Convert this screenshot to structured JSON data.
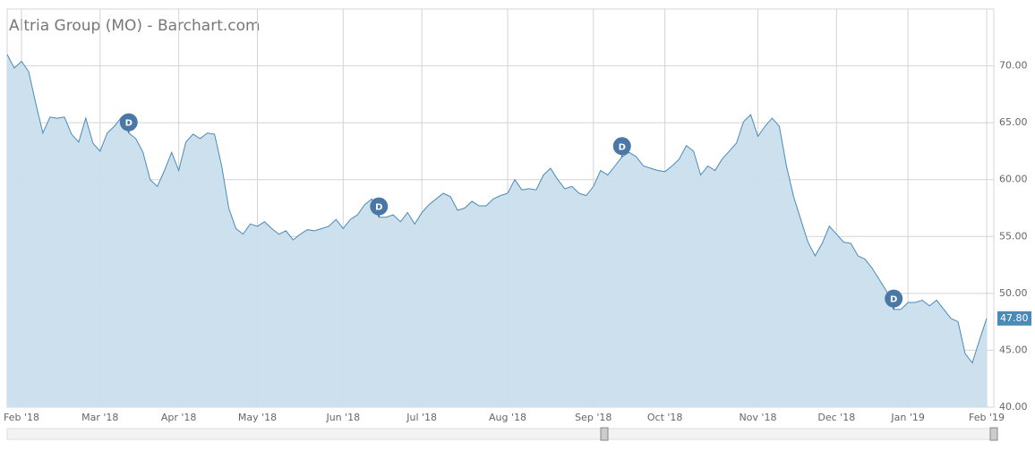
{
  "chart_data": {
    "type": "area",
    "title": "Altria Group (MO) - Barchart.com",
    "categories": [
      null,
      null,
      "Feb '18",
      null,
      null,
      null,
      null,
      null,
      null,
      null,
      null,
      null,
      null,
      "Mar '18",
      null,
      null,
      null,
      null,
      null,
      null,
      null,
      null,
      null,
      null,
      "Apr '18",
      null,
      null,
      null,
      null,
      null,
      null,
      null,
      null,
      null,
      null,
      "May '18",
      null,
      null,
      null,
      null,
      null,
      null,
      null,
      null,
      null,
      null,
      null,
      "Jun '18",
      null,
      null,
      null,
      null,
      null,
      null,
      null,
      null,
      null,
      null,
      "Jul '18",
      null,
      null,
      null,
      null,
      null,
      null,
      null,
      null,
      null,
      null,
      null,
      "Aug '18",
      null,
      null,
      null,
      null,
      null,
      null,
      null,
      null,
      null,
      null,
      null,
      "Sep '18",
      null,
      null,
      null,
      null,
      null,
      null,
      null,
      null,
      null,
      "Oct '18",
      null,
      null,
      null,
      null,
      null,
      null,
      null,
      null,
      null,
      null,
      null,
      null,
      "Nov '18",
      null,
      null,
      null,
      null,
      null,
      null,
      null,
      null,
      null,
      null,
      "Dec '18",
      null,
      null,
      null,
      null,
      null,
      null,
      null,
      null,
      null,
      "Jan '19",
      null,
      null,
      null,
      null,
      null,
      null,
      null,
      null,
      null,
      null,
      "Feb '19"
    ],
    "values": [
      71.0,
      69.8,
      70.4,
      69.5,
      66.7,
      64.1,
      65.5,
      65.4,
      65.5,
      64.0,
      63.3,
      65.4,
      63.2,
      62.5,
      64.1,
      64.7,
      65.5,
      64.1,
      63.6,
      62.4,
      60.0,
      59.4,
      60.8,
      62.4,
      60.8,
      63.3,
      64.0,
      63.6,
      64.1,
      64.0,
      61.2,
      57.5,
      55.7,
      55.2,
      56.1,
      55.9,
      56.3,
      55.7,
      55.2,
      55.5,
      54.7,
      55.2,
      55.6,
      55.5,
      55.7,
      55.9,
      56.5,
      55.7,
      56.5,
      56.9,
      57.8,
      58.3,
      56.7,
      56.7,
      56.9,
      56.3,
      57.1,
      56.1,
      57.1,
      57.8,
      58.3,
      58.8,
      58.5,
      57.3,
      57.5,
      58.1,
      57.7,
      57.7,
      58.3,
      58.6,
      58.8,
      60.0,
      59.1,
      59.2,
      59.1,
      60.4,
      61.0,
      60.0,
      59.2,
      59.4,
      58.8,
      58.6,
      59.4,
      60.8,
      60.4,
      61.2,
      62.0,
      62.4,
      62.0,
      61.2,
      61.0,
      60.8,
      60.7,
      61.2,
      61.8,
      63.0,
      62.5,
      60.4,
      61.2,
      60.8,
      61.8,
      62.5,
      63.2,
      65.1,
      65.7,
      63.8,
      64.7,
      65.4,
      64.7,
      61.2,
      58.5,
      56.5,
      54.5,
      53.3,
      54.4,
      55.9,
      55.2,
      54.5,
      54.4,
      53.3,
      53.0,
      52.2,
      51.2,
      50.2,
      48.6,
      48.6,
      49.2,
      49.2,
      49.4,
      48.9,
      49.4,
      48.6,
      47.8,
      47.5,
      44.7,
      43.9,
      45.9,
      47.8
    ],
    "last_label": "47.80",
    "dividend_label": "D",
    "dividend_points": [
      17,
      52,
      86,
      124
    ],
    "line_color": "#4a8ab8",
    "fill_color": "#c9dfec",
    "grid": true,
    "ylim": [
      40,
      75
    ],
    "yticks": [
      {
        "value": 40,
        "label": "40.00"
      },
      {
        "value": 45,
        "label": "45.00"
      },
      {
        "value": 50,
        "label": "50.00"
      },
      {
        "value": 55,
        "label": "55.00"
      },
      {
        "value": 60,
        "label": "60.00"
      },
      {
        "value": 65,
        "label": "65.00"
      },
      {
        "value": 70,
        "label": "70.00"
      }
    ]
  }
}
